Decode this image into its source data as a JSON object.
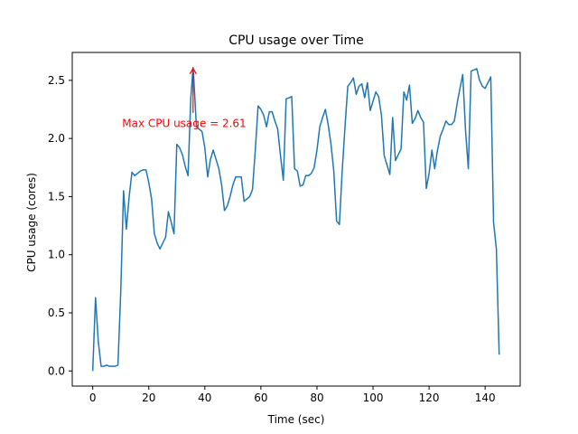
{
  "chart_data": {
    "type": "line",
    "title": "CPU usage over Time",
    "xlabel": "Time (sec)",
    "ylabel": "CPU usage (cores)",
    "xlim": [
      -7.3,
      152.5
    ],
    "ylim": [
      -0.13,
      2.74
    ],
    "xticks": [
      0,
      20,
      40,
      60,
      80,
      100,
      120,
      140
    ],
    "xtick_labels": [
      "0",
      "20",
      "40",
      "60",
      "80",
      "100",
      "120",
      "140"
    ],
    "yticks": [
      0.0,
      0.5,
      1.0,
      1.5,
      2.0,
      2.5
    ],
    "ytick_labels": [
      "0.0",
      "0.5",
      "1.0",
      "1.5",
      "2.0",
      "2.5"
    ],
    "grid": false,
    "series_color": "#1f77b4",
    "annotation": {
      "text": "Max CPU usage = 2.61",
      "color": "#ff0000",
      "xy": [
        35.8,
        2.61
      ],
      "xytext": [
        10.5,
        2.1
      ]
    },
    "series": [
      {
        "x": [
          0,
          1,
          2,
          3,
          4,
          5,
          6,
          7,
          8,
          9,
          10,
          11,
          12,
          13,
          14,
          15,
          16,
          17,
          18,
          19,
          20,
          21,
          22,
          23,
          24,
          25,
          26,
          27,
          28,
          29,
          30,
          31,
          32,
          33,
          34,
          35,
          35.8,
          36,
          37,
          38,
          39,
          40,
          41,
          42,
          43,
          44,
          45,
          46,
          47,
          48,
          49,
          50,
          51,
          52,
          53,
          54,
          55,
          56,
          57,
          58,
          59,
          60,
          61,
          62,
          63,
          64,
          65,
          66,
          67,
          68,
          69,
          70,
          71,
          72,
          73,
          74,
          75,
          76,
          77,
          78,
          79,
          80,
          81,
          82,
          83,
          84,
          85,
          86,
          87,
          88,
          89,
          90,
          91,
          92,
          93,
          94,
          95,
          96,
          97,
          98,
          99,
          100,
          101,
          102,
          103,
          104,
          105,
          106,
          107,
          108,
          109,
          110,
          111,
          112,
          113,
          114,
          115,
          116,
          117,
          118,
          119,
          120,
          121,
          122,
          123,
          124,
          125,
          126,
          127,
          128,
          129,
          130,
          131,
          132,
          133,
          134,
          135,
          136,
          137,
          138,
          139,
          140,
          141,
          142,
          143,
          144,
          145
        ],
        "y": [
          0.0,
          0.63,
          0.25,
          0.04,
          0.04,
          0.05,
          0.04,
          0.04,
          0.04,
          0.05,
          0.68,
          1.55,
          1.22,
          1.5,
          1.71,
          1.68,
          1.7,
          1.72,
          1.73,
          1.73,
          1.62,
          1.48,
          1.18,
          1.1,
          1.05,
          1.1,
          1.15,
          1.37,
          1.28,
          1.18,
          1.95,
          1.92,
          1.86,
          1.76,
          1.68,
          2.35,
          2.61,
          2.54,
          2.1,
          2.08,
          2.06,
          1.92,
          1.67,
          1.82,
          1.9,
          1.82,
          1.74,
          1.6,
          1.38,
          1.42,
          1.5,
          1.6,
          1.67,
          1.67,
          1.67,
          1.46,
          1.48,
          1.5,
          1.56,
          1.9,
          2.28,
          2.25,
          2.2,
          2.1,
          2.23,
          2.23,
          2.15,
          2.08,
          1.85,
          1.64,
          2.34,
          2.35,
          2.36,
          1.74,
          1.72,
          1.59,
          1.6,
          1.68,
          1.68,
          1.7,
          1.75,
          1.9,
          2.1,
          2.18,
          2.25,
          2.12,
          1.95,
          1.72,
          1.29,
          1.26,
          1.72,
          2.1,
          2.45,
          2.48,
          2.52,
          2.38,
          2.45,
          2.47,
          2.35,
          2.48,
          2.24,
          2.32,
          2.4,
          2.36,
          2.2,
          1.85,
          1.77,
          1.69,
          2.18,
          1.81,
          1.86,
          1.91,
          2.4,
          2.33,
          2.46,
          2.13,
          2.17,
          2.24,
          2.18,
          2.14,
          1.57,
          1.7,
          1.9,
          1.74,
          1.9,
          2.02,
          2.08,
          2.15,
          2.12,
          2.12,
          2.15,
          2.3,
          2.43,
          2.55,
          2.07,
          1.74,
          2.58,
          2.59,
          2.6,
          2.5,
          2.45,
          2.43,
          2.48,
          2.53,
          1.28,
          1.05,
          0.14
        ]
      }
    ]
  }
}
